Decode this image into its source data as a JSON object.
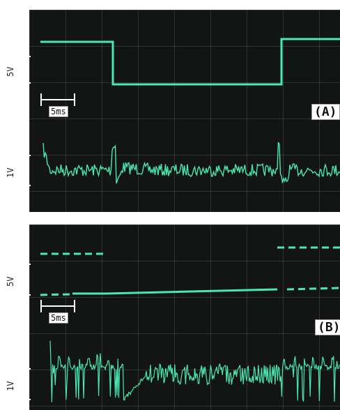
{
  "panel_a": {
    "tag": "(A)",
    "volt_scale": "5V",
    "volt_scale_small": "1V",
    "time_scale": "5ms"
  },
  "panel_b": {
    "tag": "(B)",
    "volt_scale": "5V",
    "volt_scale_small": "1V",
    "time_scale": "5ms"
  },
  "colors": {
    "trace": "#49e8b1",
    "screen": "#121513",
    "grid": "#8fa397"
  }
}
